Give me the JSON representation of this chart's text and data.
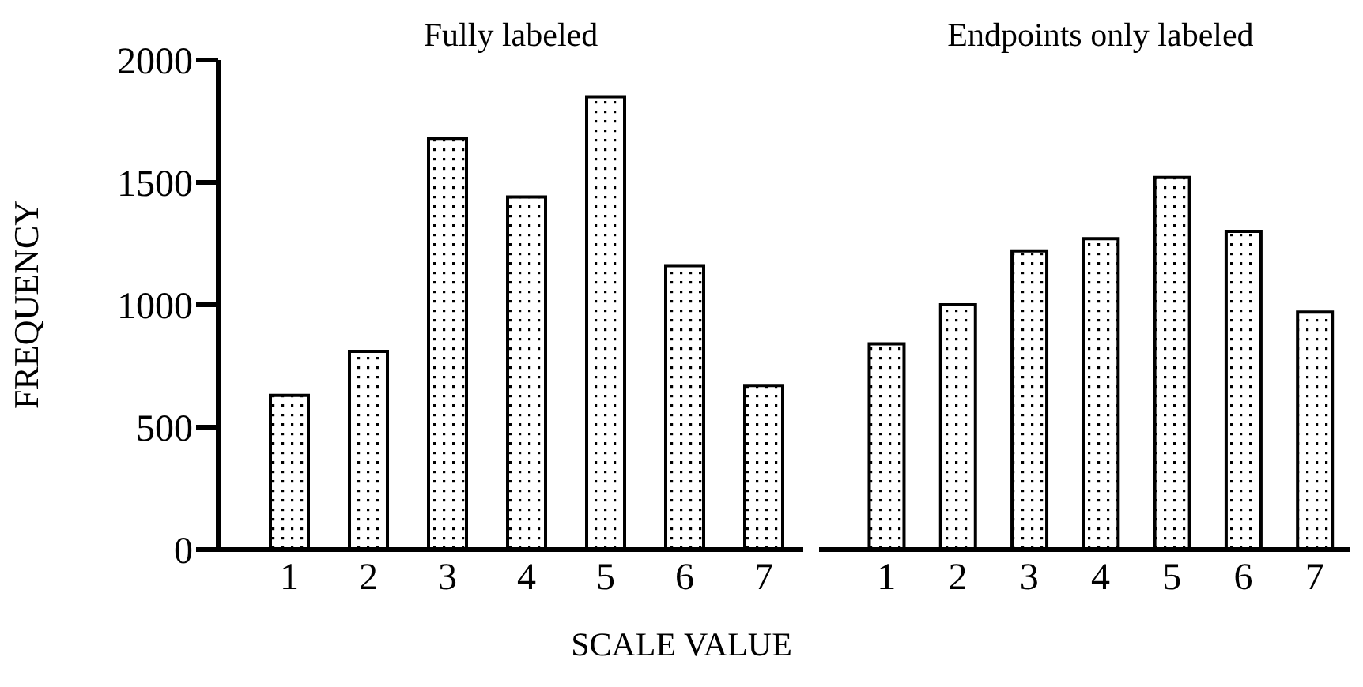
{
  "chart_data": [
    {
      "type": "bar",
      "title": "Fully labeled",
      "xlabel": "SCALE VALUE",
      "ylabel": "FREQUENCY",
      "categories": [
        "1",
        "2",
        "3",
        "4",
        "5",
        "6",
        "7"
      ],
      "values": [
        630,
        810,
        1680,
        1440,
        1850,
        1160,
        670
      ],
      "color": "#000000",
      "ylim": [
        0,
        2000
      ],
      "yticks": [
        0,
        500,
        1000,
        1500,
        2000
      ],
      "grid": false
    },
    {
      "type": "bar",
      "title": "Endpoints only labeled",
      "categories": [
        "1",
        "2",
        "3",
        "4",
        "5",
        "6",
        "7"
      ],
      "values": [
        840,
        1000,
        1220,
        1270,
        1520,
        1300,
        970
      ],
      "color": "#000000",
      "ylim": [
        0,
        2000
      ],
      "tick_labels": "x",
      "grid": false
    }
  ]
}
